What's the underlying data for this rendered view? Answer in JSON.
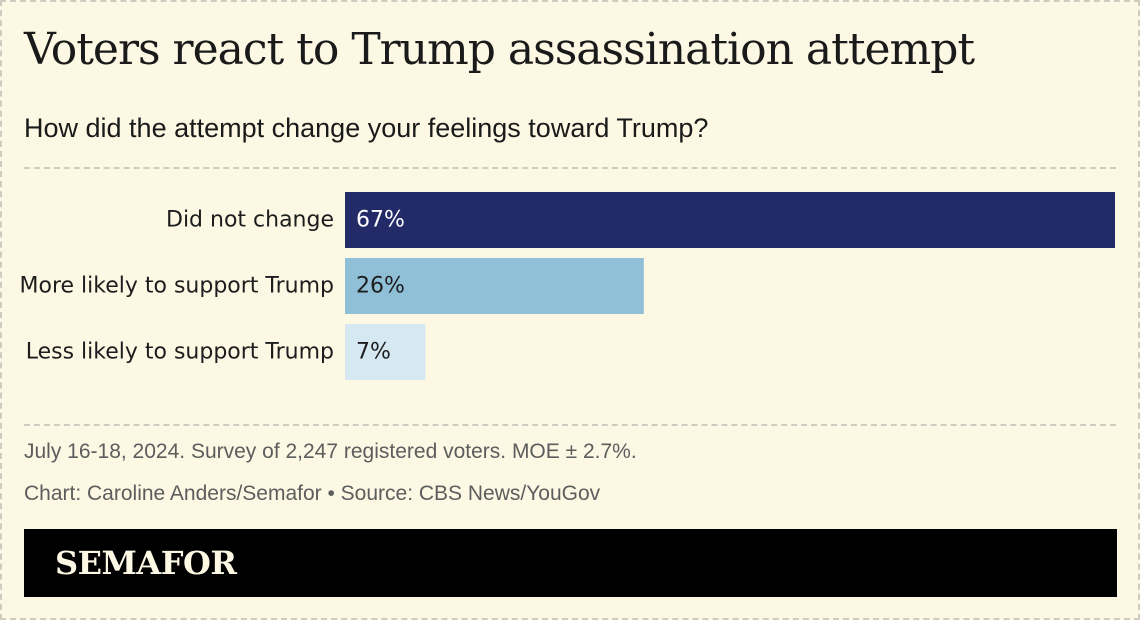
{
  "title": "Voters react to Trump assassination attempt",
  "subtitle": "How did the attempt change your feelings toward Trump?",
  "notes": {
    "survey": "July 16-18, 2024. Survey of 2,247 registered voters. MOE ± 2.7%.",
    "credit": "Chart: Caroline Anders/Semafor • Source: CBS News/YouGov"
  },
  "footer": {
    "logo_text": "SEMAFOR"
  },
  "chart_data": {
    "type": "bar",
    "orientation": "horizontal",
    "categories": [
      "Did not change",
      "More likely to support Trump",
      "Less likely to support Trump"
    ],
    "values": [
      67,
      26,
      7
    ],
    "value_labels": [
      "67%",
      "26%",
      "7%"
    ],
    "colors": [
      "#222a68",
      "#8fc0d8",
      "#d6e8f2"
    ],
    "label_colors": [
      "#ffffff",
      "#1d1d1d",
      "#1d1d1d"
    ],
    "xlim": [
      0,
      67
    ],
    "grid": false,
    "title": "Voters react to Trump assassination attempt",
    "subtitle": "How did the attempt change your feelings toward Trump?"
  }
}
